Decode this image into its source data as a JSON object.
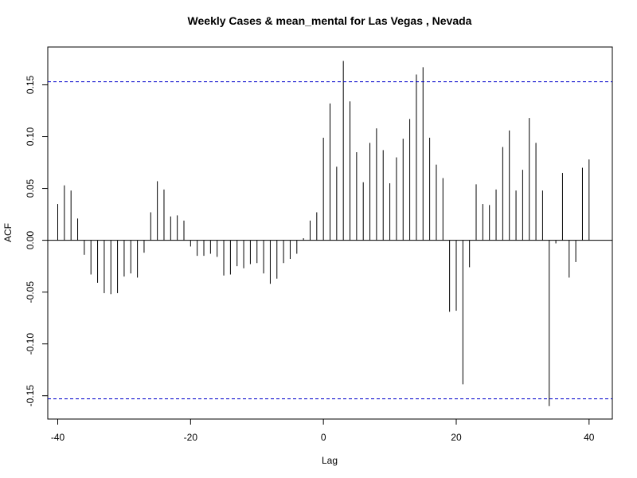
{
  "chart_data": {
    "type": "bar",
    "title": "Weekly Cases & mean_mental for Las Vegas , Nevada",
    "xlabel": "Lag",
    "ylabel": "ACF",
    "xlim": [
      -41.5,
      43.5
    ],
    "ylim": [
      -0.1725,
      0.1865
    ],
    "x_ticks": [
      -40,
      -20,
      0,
      20,
      40
    ],
    "y_ticks": [
      -0.15,
      -0.1,
      -0.05,
      0.0,
      0.05,
      0.1,
      0.15
    ],
    "y_tick_labels": [
      "-0.15",
      "-0.10",
      "-0.05",
      "0.00",
      "0.05",
      "0.10",
      "0.15"
    ],
    "x_tick_labels": [
      "-40",
      "-20",
      "0",
      "20",
      "40"
    ],
    "confidence_bound": 0.153,
    "confidence_color": "#0000cc",
    "bar_color": "#000000",
    "grid": false,
    "series": [
      {
        "lags": [
          -40,
          -39,
          -38,
          -37,
          -36,
          -35,
          -34,
          -33,
          -32,
          -31,
          -30,
          -29,
          -28,
          -27,
          -26,
          -25,
          -24,
          -23,
          -22,
          -21,
          -20,
          -19,
          -18,
          -17,
          -16,
          -15,
          -14,
          -13,
          -12,
          -11,
          -10,
          -9,
          -8,
          -7,
          -6,
          -5,
          -4,
          -3,
          -2,
          -1,
          0,
          1,
          2,
          3,
          4,
          5,
          6,
          7,
          8,
          9,
          10,
          11,
          12,
          13,
          14,
          15,
          16,
          17,
          18,
          19,
          20,
          21,
          22,
          23,
          24,
          25,
          26,
          27,
          28,
          29,
          30,
          31,
          32,
          33,
          34,
          35,
          36,
          37,
          38,
          39,
          40
        ],
        "values": [
          0.035,
          0.053,
          0.048,
          0.021,
          -0.014,
          -0.033,
          -0.041,
          -0.051,
          -0.052,
          -0.051,
          -0.035,
          -0.032,
          -0.036,
          -0.012,
          0.027,
          0.057,
          0.049,
          0.023,
          0.024,
          0.019,
          -0.006,
          -0.015,
          -0.015,
          -0.013,
          -0.016,
          -0.034,
          -0.033,
          -0.025,
          -0.027,
          -0.023,
          -0.022,
          -0.032,
          -0.042,
          -0.037,
          -0.022,
          -0.018,
          -0.013,
          0.002,
          0.019,
          0.027,
          0.099,
          0.132,
          0.071,
          0.173,
          0.134,
          0.085,
          0.056,
          0.094,
          0.108,
          0.087,
          0.055,
          0.08,
          0.098,
          0.117,
          0.16,
          0.167,
          0.099,
          0.073,
          0.06,
          -0.069,
          -0.068,
          -0.139,
          -0.026,
          0.054,
          0.035,
          0.034,
          0.049,
          0.09,
          0.106,
          0.048,
          0.068,
          0.118,
          0.094,
          0.048,
          -0.16,
          -0.003,
          0.065,
          -0.036,
          -0.021,
          0.07,
          0.078
        ]
      }
    ]
  }
}
